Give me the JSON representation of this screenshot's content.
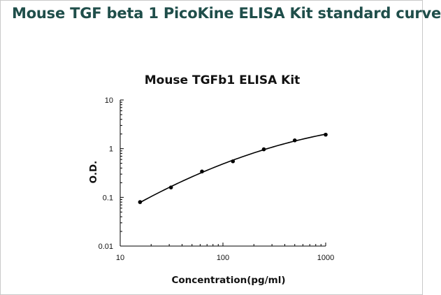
{
  "page": {
    "title": "Mouse TGF beta 1 PicoKine ELISA Kit standard curve"
  },
  "chart_data": {
    "type": "scatter",
    "title": "Mouse TGFb1 ELISA Kit",
    "xlabel": "Concentration(pg/ml)",
    "ylabel": "O.D.",
    "x_scale": "log",
    "y_scale": "log",
    "xlim": [
      10,
      1000
    ],
    "ylim": [
      0.01,
      10
    ],
    "x_ticks": [
      {
        "value": 10,
        "label": "10"
      },
      {
        "value": 100,
        "label": "100"
      },
      {
        "value": 1000,
        "label": "1000"
      }
    ],
    "y_ticks": [
      {
        "value": 10,
        "label": "10"
      },
      {
        "value": 1,
        "label": "1"
      },
      {
        "value": 0.1,
        "label": "0.1"
      },
      {
        "value": 0.01,
        "label": "0.01"
      }
    ],
    "grid": false,
    "legend": "none",
    "series": [
      {
        "values": [
          {
            "x": 15.6,
            "y": 0.08
          },
          {
            "x": 31.2,
            "y": 0.16
          },
          {
            "x": 62.5,
            "y": 0.34
          },
          {
            "x": 125,
            "y": 0.55
          },
          {
            "x": 250,
            "y": 0.97
          },
          {
            "x": 500,
            "y": 1.48
          },
          {
            "x": 1000,
            "y": 1.94
          }
        ],
        "fit_curve": true
      }
    ],
    "colors": {
      "points": "#000000",
      "curve": "#000000",
      "axis": "#000000"
    }
  }
}
